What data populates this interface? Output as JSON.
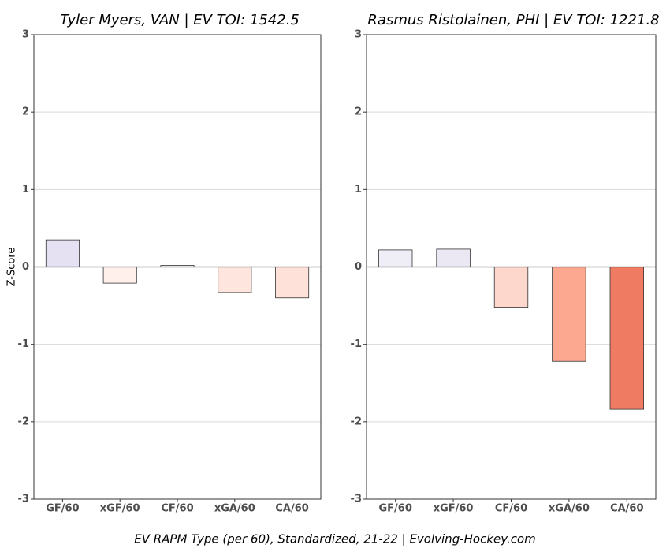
{
  "chart_data": [
    {
      "type": "bar",
      "title": "Tyler Myers, VAN  |  EV TOI: 1542.5",
      "ylabel": "Z-Score",
      "categories": [
        "GF/60",
        "xGF/60",
        "CF/60",
        "xGA/60",
        "CA/60"
      ],
      "values": [
        0.35,
        -0.21,
        0.02,
        -0.33,
        -0.4
      ],
      "colors": [
        "#e6e0f3",
        "#fff0ec",
        "#f6f4f9",
        "#fee6df",
        "#fee1d8"
      ],
      "ylim": [
        -3,
        3
      ],
      "yticks": [
        -3,
        -2,
        -1,
        0,
        1,
        2,
        3
      ],
      "grid": true
    },
    {
      "type": "bar",
      "title": "Rasmus Ristolainen, PHI  |  EV TOI: 1221.8",
      "categories": [
        "GF/60",
        "xGF/60",
        "CF/60",
        "xGA/60",
        "CA/60"
      ],
      "values": [
        0.22,
        0.23,
        -0.52,
        -1.22,
        -1.84
      ],
      "colors": [
        "#efedf5",
        "#ebe8f3",
        "#fdd6cc",
        "#fca78f",
        "#ef7c62"
      ],
      "ylim": [
        -3,
        3
      ],
      "yticks": [
        -3,
        -2,
        -1,
        0,
        1,
        2,
        3
      ],
      "grid": true
    }
  ],
  "caption": "EV RAPM Type (per 60), Standardized, 21-22    |    Evolving-Hockey.com"
}
